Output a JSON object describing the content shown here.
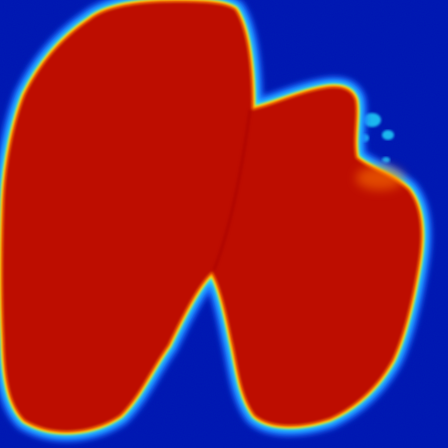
{
  "image": {
    "kind": "segmentation probability heatmap",
    "colormap": "jet",
    "colors": {
      "background": "#0014b4",
      "background_dark": "#000c8c",
      "edge_blue": "#1e6cff",
      "edge_cyan": "#21e1ff",
      "edge_yellow": "#f8f20a",
      "edge_orange": "#ff7a00",
      "foreground": "#bd0a00",
      "foreground_dark": "#a80000"
    }
  }
}
